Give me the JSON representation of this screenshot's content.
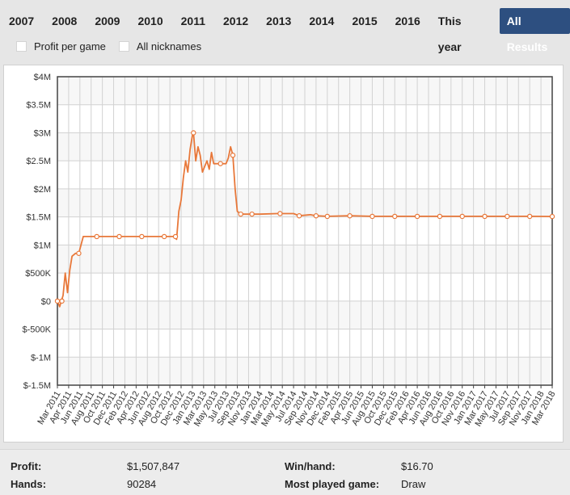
{
  "tabs": [
    "2007",
    "2008",
    "2009",
    "2010",
    "2011",
    "2012",
    "2013",
    "2014",
    "2015",
    "2016",
    "This year",
    "All Results"
  ],
  "active_tab": "All Results",
  "options": {
    "profit_per_game": "Profit per game",
    "all_nicknames": "All nicknames"
  },
  "stats": {
    "profit_label": "Profit:",
    "profit_value": "$1,507,847",
    "hands_label": "Hands:",
    "hands_value": "90284",
    "winhand_label": "Win/hand:",
    "winhand_value": "$16.70",
    "game_label": "Most played game:",
    "game_value": "Draw"
  },
  "colors": {
    "line": "#e8783a",
    "active_tab": "#2d4f80"
  },
  "chart_data": {
    "type": "line",
    "y_ticks": [
      "$4M",
      "$3.5M",
      "$3M",
      "$2.5M",
      "$2M",
      "$1.5M",
      "$1M",
      "$500K",
      "$0",
      "$-500K",
      "$-1M",
      "$-1.5M"
    ],
    "ylim": [
      -1500000,
      4000000
    ],
    "grid": true,
    "x_categories": [
      "Mar 2011",
      "Apr 2011",
      "Jun 2011",
      "Aug 2011",
      "Oct 2011",
      "Dec 2011",
      "Feb 2012",
      "Apr 2012",
      "Jun 2012",
      "Aug 2012",
      "Oct 2012",
      "Dec 2012",
      "Jan 2013",
      "Mar 2013",
      "May 2013",
      "Jul 2013",
      "Sep 2013",
      "Nov 2013",
      "Jan 2014",
      "Mar 2014",
      "May 2014",
      "Jul 2014",
      "Sep 2014",
      "Nov 2014",
      "Dec 2014",
      "Feb 2015",
      "Apr 2015",
      "Jun 2015",
      "Aug 2015",
      "Oct 2015",
      "Dec 2015",
      "Feb 2016",
      "Apr 2016",
      "Jun 2016",
      "Aug 2016",
      "Oct 2016",
      "Nov 2016",
      "Jan 2017",
      "Mar 2017",
      "May 2017",
      "Jul 2017",
      "Sep 2017",
      "Nov 2017",
      "Jan 2018",
      "Mar 2018"
    ],
    "series": [
      {
        "values": [
          [
            0,
            0
          ],
          [
            0.2,
            -100000
          ],
          [
            0.5,
            100000
          ],
          [
            0.7,
            500000
          ],
          [
            0.9,
            150000
          ],
          [
            1.1,
            550000
          ],
          [
            1.3,
            800000
          ],
          [
            1.6,
            850000
          ],
          [
            1.9,
            850000
          ],
          [
            2.1,
            1000000
          ],
          [
            2.3,
            1150000
          ],
          [
            3.5,
            1150000
          ],
          [
            5.5,
            1150000
          ],
          [
            7.5,
            1150000
          ],
          [
            9.5,
            1150000
          ],
          [
            10.4,
            1150000
          ],
          [
            10.6,
            1100000
          ],
          [
            10.8,
            1600000
          ],
          [
            11.0,
            1800000
          ],
          [
            11.2,
            2200000
          ],
          [
            11.4,
            2500000
          ],
          [
            11.6,
            2300000
          ],
          [
            11.8,
            2700000
          ],
          [
            12.0,
            2950000
          ],
          [
            12.1,
            3000000
          ],
          [
            12.3,
            2500000
          ],
          [
            12.5,
            2750000
          ],
          [
            12.7,
            2600000
          ],
          [
            12.9,
            2300000
          ],
          [
            13.1,
            2400000
          ],
          [
            13.3,
            2500000
          ],
          [
            13.5,
            2350000
          ],
          [
            13.7,
            2650000
          ],
          [
            13.9,
            2450000
          ],
          [
            14.5,
            2450000
          ],
          [
            15.0,
            2450000
          ],
          [
            15.2,
            2550000
          ],
          [
            15.4,
            2750000
          ],
          [
            15.6,
            2600000
          ],
          [
            15.8,
            2000000
          ],
          [
            16.0,
            1600000
          ],
          [
            16.3,
            1550000
          ],
          [
            17.0,
            1550000
          ],
          [
            18.0,
            1550000
          ],
          [
            19.5,
            1560000
          ],
          [
            21.0,
            1560000
          ],
          [
            21.5,
            1520000
          ],
          [
            22.5,
            1540000
          ],
          [
            23.0,
            1520000
          ],
          [
            24.0,
            1510000
          ],
          [
            26.0,
            1520000
          ],
          [
            28.0,
            1510000
          ],
          [
            30.0,
            1510000
          ],
          [
            32.0,
            1510000
          ],
          [
            34.0,
            1510000
          ],
          [
            36.0,
            1510000
          ],
          [
            38.0,
            1510000
          ],
          [
            40.0,
            1510000
          ],
          [
            42.0,
            1510000
          ],
          [
            44.0,
            1507847
          ]
        ]
      }
    ],
    "markers": [
      [
        0,
        0
      ],
      [
        0.4,
        0
      ],
      [
        1.9,
        850000
      ],
      [
        3.5,
        1150000
      ],
      [
        5.5,
        1150000
      ],
      [
        7.5,
        1150000
      ],
      [
        9.5,
        1150000
      ],
      [
        10.5,
        1150000
      ],
      [
        12.1,
        3000000
      ],
      [
        14.5,
        2450000
      ],
      [
        15.6,
        2600000
      ],
      [
        16.3,
        1550000
      ],
      [
        17.3,
        1550000
      ],
      [
        19.8,
        1560000
      ],
      [
        21.5,
        1520000
      ],
      [
        23.0,
        1520000
      ],
      [
        24.0,
        1510000
      ],
      [
        26.0,
        1520000
      ],
      [
        28.0,
        1510000
      ],
      [
        30.0,
        1510000
      ],
      [
        32.0,
        1510000
      ],
      [
        34.0,
        1510000
      ],
      [
        36.0,
        1510000
      ],
      [
        38.0,
        1510000
      ],
      [
        40.0,
        1510000
      ],
      [
        42.0,
        1510000
      ],
      [
        44.0,
        1507847
      ]
    ]
  }
}
